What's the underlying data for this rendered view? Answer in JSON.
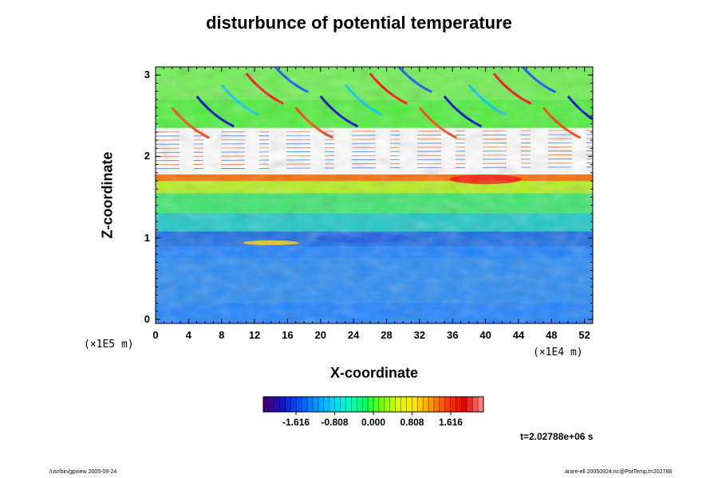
{
  "chart_data": {
    "type": "heatmap",
    "title": "disturbunce of potential temperature",
    "xlabel": "X-coordinate",
    "ylabel": "Z-coordinate",
    "x_unit": "(×1E4 m)",
    "y_unit": "(×1E5 m)",
    "xlim": [
      0,
      53
    ],
    "ylim": [
      -0.05,
      3.1
    ],
    "x_ticks": [
      "0",
      "4",
      "8",
      "12",
      "16",
      "20",
      "24",
      "28",
      "32",
      "36",
      "40",
      "44",
      "48",
      "52"
    ],
    "y_ticks": [
      "0",
      "1",
      "2",
      "3"
    ],
    "colorbar": {
      "range": [
        -2.3,
        2.3
      ],
      "tick_labels": [
        "-1.616",
        "-0.808",
        "0.000",
        "0.808",
        "1.616"
      ],
      "colors": [
        "#400080",
        "#1414c8",
        "#0050ff",
        "#0096ff",
        "#00d2ff",
        "#00ffc8",
        "#00ff64",
        "#78ff00",
        "#dcff00",
        "#ffe600",
        "#ff9600",
        "#ff3c00",
        "#e60000",
        "#ff8080"
      ]
    },
    "time_label": "t=2.02788e+06 s"
  },
  "footer": {
    "left": "/usr/bin/gpview 2005-09-24",
    "right": "arare-ell 20050924.nc@PotTemp,t=202788"
  }
}
